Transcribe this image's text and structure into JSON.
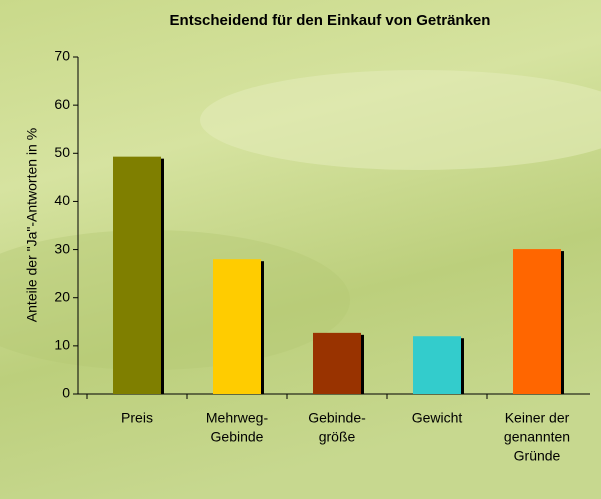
{
  "chart_data": {
    "type": "bar",
    "title": "Entscheidend für den Einkauf von Getränken",
    "y_label": "Anteile der \"Ja\"-Antworten in %",
    "categories": [
      [
        "Preis"
      ],
      [
        "Mehrweg-",
        "Gebinde"
      ],
      [
        "Gebinde-",
        "größe"
      ],
      [
        "Gewicht"
      ],
      [
        "Keiner der",
        "genannten",
        "Gründe"
      ]
    ],
    "values": [
      49.3,
      28,
      12.7,
      12,
      30.1
    ],
    "colors": [
      "#7f7f00",
      "#ffcc00",
      "#993300",
      "#33cccc",
      "#ff6600"
    ],
    "ylim": [
      0,
      70
    ],
    "yticks": [
      0,
      10,
      20,
      30,
      40,
      50,
      60,
      70
    ],
    "grid": false
  }
}
